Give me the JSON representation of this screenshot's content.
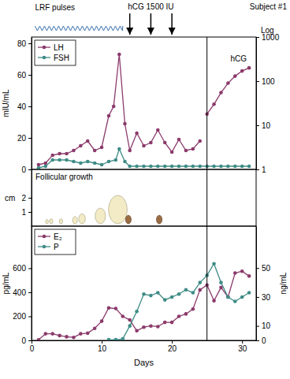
{
  "chart_data": [
    {
      "type": "line",
      "subject": "Subject #1",
      "lrf_pulses": {
        "label": "LRF pulses",
        "start": 0.5,
        "end": 13
      },
      "hcg_injections": {
        "label": "hCG 1500 IU",
        "x": [
          14,
          17,
          20
        ]
      },
      "vline_x": 25,
      "y_label": "mIU/mL",
      "y2_label": "Log",
      "xlim": [
        0,
        32
      ],
      "ylim": [
        0,
        84
      ],
      "yticks": [
        0,
        20,
        40,
        60,
        80
      ],
      "y2lim": [
        1,
        1000
      ],
      "y2ticks": [
        1,
        10,
        100,
        1000
      ],
      "log": "y2",
      "legend": "top-left",
      "series": [
        {
          "name": "LH",
          "color": "#8b3a6b",
          "marker": "circle",
          "x": [
            1,
            2,
            3,
            4,
            5,
            6,
            7,
            8,
            9,
            10,
            11,
            11.7,
            12.5,
            13.3,
            14,
            15,
            16,
            17,
            18,
            19,
            20,
            21,
            22,
            23,
            24
          ],
          "values": [
            3,
            4,
            9,
            10,
            10,
            12,
            15,
            18,
            12,
            14,
            34,
            40,
            73,
            29,
            12,
            23,
            15,
            17,
            25,
            17,
            11,
            19,
            12,
            13,
            18
          ]
        },
        {
          "name": "FSH",
          "color": "#3f8c86",
          "marker": "circle",
          "x": [
            1,
            2,
            3,
            4,
            5,
            6,
            7,
            8,
            9,
            10,
            11,
            12,
            12.5,
            13.3,
            14,
            15,
            16,
            17,
            18,
            19,
            20,
            21,
            22,
            23,
            24,
            25,
            26,
            27,
            28,
            29,
            30,
            31
          ],
          "values": [
            1,
            2,
            6,
            6,
            6,
            5,
            4,
            5,
            4,
            3,
            5,
            6,
            13,
            5,
            2,
            2,
            2,
            2,
            2,
            2,
            2,
            2,
            2,
            2,
            2,
            2,
            2,
            2,
            2,
            2,
            2,
            2
          ]
        }
      ],
      "labeled_series": [
        {
          "name": "hCG",
          "color": "#8b3a6b",
          "marker": "circle",
          "axis": "y2",
          "x": [
            25,
            26,
            27,
            28,
            29,
            30,
            31
          ],
          "values": [
            18,
            30,
            55,
            90,
            130,
            170,
            200
          ]
        }
      ]
    },
    {
      "type": "scatter",
      "title": "Follicular growth",
      "y_label": "cm",
      "xlim": [
        0,
        32
      ],
      "ylim": [
        0,
        4
      ],
      "yticks": [
        1,
        2
      ],
      "series": [
        {
          "color": "#f2ebc5",
          "marker": "ellipse",
          "x": [
            2.2,
            2.8,
            4.2,
            6.2,
            7.2,
            9.8,
            12.3
          ],
          "values": [
            0.3,
            0.35,
            0.35,
            0.5,
            0.7,
            1.1,
            2.0
          ]
        },
        {
          "color": "#9a6c45",
          "marker": "ellipse",
          "x": [
            13.8,
            18.2
          ],
          "values": [
            0.6,
            0.6
          ]
        }
      ]
    },
    {
      "type": "line",
      "x_label": "Days",
      "y_label": "pg/mL",
      "y2_label": "ng/mL",
      "xlim": [
        0,
        32
      ],
      "xticks": [
        0,
        10,
        20,
        30
      ],
      "ylim": [
        0,
        950
      ],
      "yticks": [
        0,
        200,
        400,
        600
      ],
      "y2lim": [
        0,
        79
      ],
      "y2ticks": [
        0,
        10,
        30,
        50
      ],
      "legend": "top-left",
      "series": [
        {
          "name": "E₂",
          "color": "#8b3a6b",
          "marker": "circle",
          "x": [
            1,
            2,
            3,
            4,
            5,
            6,
            7,
            8,
            9,
            10,
            11,
            12,
            13,
            14,
            15,
            16,
            17,
            18,
            19,
            20,
            21,
            22,
            23,
            24,
            25,
            26,
            27,
            28,
            29,
            30,
            31
          ],
          "values": [
            5,
            55,
            55,
            40,
            30,
            25,
            55,
            60,
            100,
            160,
            270,
            265,
            200,
            170,
            80,
            110,
            120,
            115,
            150,
            150,
            200,
            220,
            260,
            420,
            460,
            330,
            440,
            360,
            560,
            575,
            535
          ]
        },
        {
          "name": "P",
          "color": "#3f8c86",
          "marker": "circle",
          "axis": "y2",
          "x": [
            11,
            12,
            13,
            14,
            15,
            16,
            17,
            18,
            19,
            20,
            21,
            22,
            23,
            24,
            25,
            26,
            27,
            28,
            29,
            30,
            31
          ],
          "values": [
            0.5,
            0.5,
            1,
            10,
            20,
            32,
            31,
            33,
            28,
            30,
            32,
            35,
            33,
            40,
            45,
            53,
            40,
            30,
            27,
            30,
            33
          ]
        }
      ]
    }
  ]
}
